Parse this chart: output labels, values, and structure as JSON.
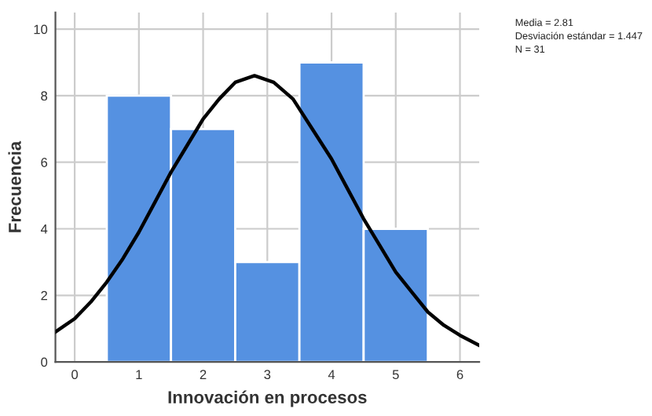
{
  "chart_data": {
    "type": "histogram",
    "xlabel": "Innovación en procesos",
    "ylabel": "Frecuencia",
    "bins": [
      0.5,
      1.5,
      2.5,
      3.5,
      4.5,
      5.5
    ],
    "values": [
      8,
      7,
      3,
      9,
      4
    ],
    "color": "#5591e1",
    "series": [
      {
        "type": "line",
        "color": "#000000",
        "x": [
          -0.3,
          0,
          0.25,
          0.5,
          0.75,
          1,
          1.25,
          1.5,
          1.75,
          2,
          2.25,
          2.5,
          2.8,
          3.1,
          3.4,
          3.7,
          4,
          4.25,
          4.5,
          4.75,
          5,
          5.25,
          5.5,
          5.75,
          6,
          6.3
        ],
        "values": [
          0.9,
          1.3,
          1.8,
          2.4,
          3.1,
          3.9,
          4.8,
          5.7,
          6.5,
          7.3,
          7.9,
          8.4,
          8.6,
          8.4,
          7.9,
          7.0,
          6.1,
          5.2,
          4.3,
          3.5,
          2.7,
          2.1,
          1.5,
          1.1,
          0.8,
          0.5
        ]
      }
    ],
    "xlim": [
      -0.3,
      6.3
    ],
    "ylim": [
      0,
      10.5
    ],
    "xticks": [
      0,
      1,
      2,
      3,
      4,
      5,
      6
    ],
    "yticks": [
      0,
      2,
      4,
      6,
      8,
      10
    ],
    "grid": true,
    "annotations": [
      "Media = 2.81",
      "Desviación estándar = 1.447",
      "N = 31"
    ]
  }
}
